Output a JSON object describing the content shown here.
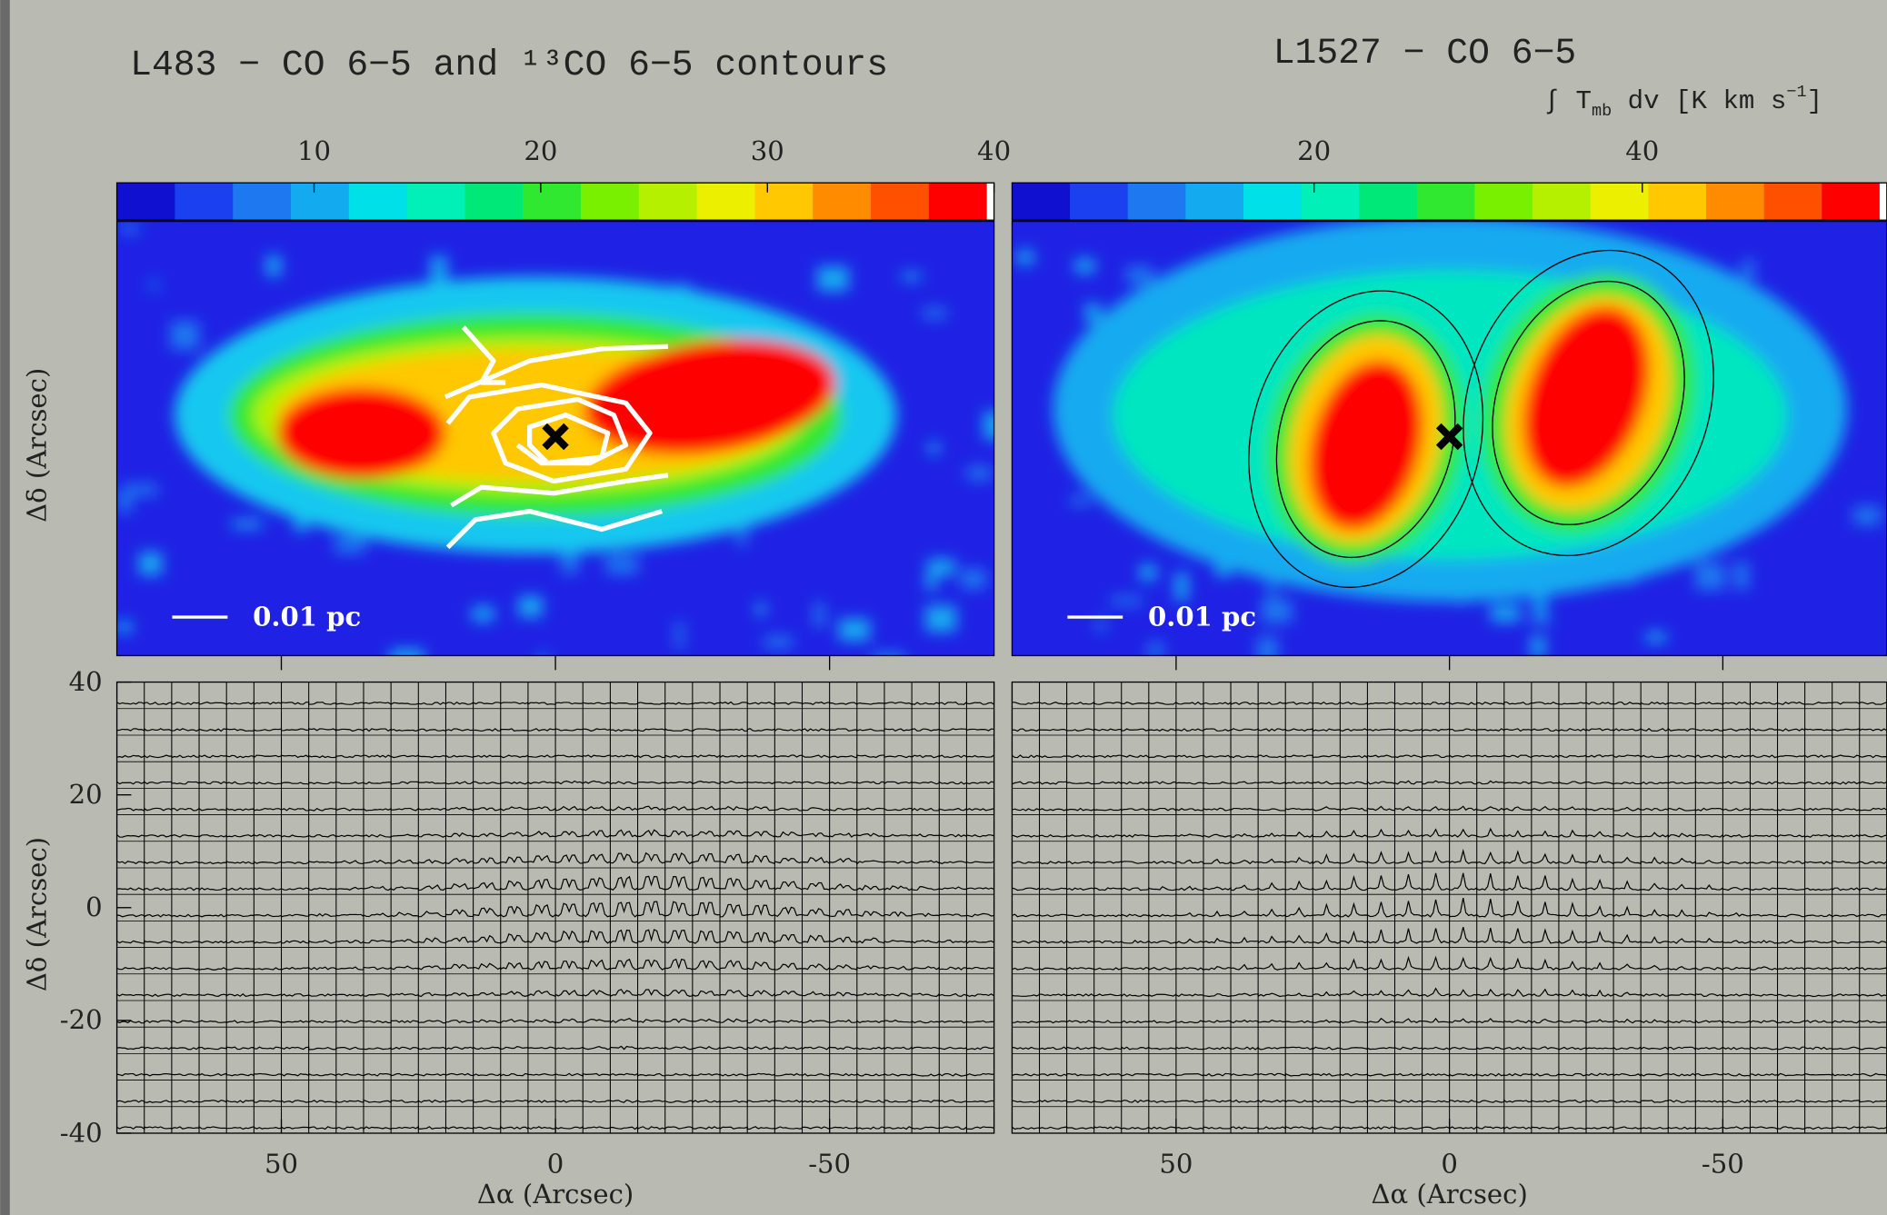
{
  "chart_data": [
    {
      "type": "map",
      "title": "L483 − CO 6−5 and ¹³CO 6−5 contours",
      "colorbar_ticks": [
        10,
        20,
        30,
        40
      ],
      "clim": [
        1.3,
        40
      ],
      "scale_bar": "0.01 pc",
      "xlim": [
        80,
        -80
      ],
      "xticks": [
        50,
        0,
        -50
      ],
      "xlabel": "Δα (Arcsec)",
      "ylim": [
        -40,
        40
      ],
      "yticks": [
        40,
        20,
        0,
        -20,
        -40
      ],
      "ylabel": "Δδ (Arcsec)"
    },
    {
      "type": "map",
      "title": "L1527 − CO 6−5",
      "colorbar_label": [
        "∫ T",
        "mb",
        " dv [K km s",
        "−1",
        "]"
      ],
      "colorbar_ticks": [
        20,
        40
      ],
      "clim": [
        1.6,
        54.9
      ],
      "scale_bar": "0.01 pc",
      "xlim": [
        80,
        -80
      ],
      "xticks": [
        50,
        0,
        -50
      ],
      "xlabel": "Δα (Arcsec)",
      "ylim": [
        -40,
        40
      ]
    }
  ]
}
